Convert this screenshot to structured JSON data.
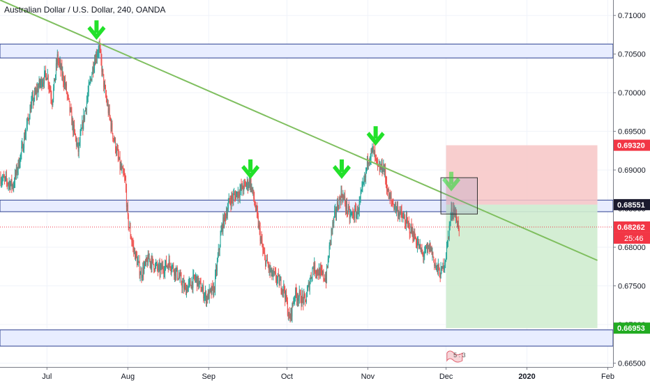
{
  "header": {
    "title": "Australian Dollar / U.S. Dollar, 240, OANDA"
  },
  "chart_data": {
    "type": "candlestick",
    "title": "Australian Dollar / U.S. Dollar, 240, OANDA",
    "ylim": [
      0.6645,
      0.712
    ],
    "y_ticks": [
      0.665,
      0.67,
      0.675,
      0.68,
      0.685,
      0.69,
      0.695,
      0.7,
      0.705,
      0.71
    ],
    "y_tick_labels": [
      "0.66500",
      "0.67000",
      "0.67500",
      "0.68000",
      "0.68500",
      "0.69000",
      "0.69500",
      "0.70000",
      "0.70500",
      "0.71000"
    ],
    "x_range": [
      "2019-06-13",
      "2020-02-03"
    ],
    "x_ticks": [
      {
        "label": "Jul",
        "date": "2019-07-01"
      },
      {
        "label": "Aug",
        "date": "2019-08-01"
      },
      {
        "label": "Sep",
        "date": "2019-09-01"
      },
      {
        "label": "Oct",
        "date": "2019-10-01"
      },
      {
        "label": "Nov",
        "date": "2019-11-01"
      },
      {
        "label": "Dec",
        "date": "2019-12-01"
      },
      {
        "label": "2020",
        "date": "2020-01-01"
      },
      {
        "label": "Feb",
        "date": "2020-02-01"
      }
    ],
    "price_path": [
      [
        "2019-06-13",
        0.689
      ],
      [
        "2019-06-18",
        0.688
      ],
      [
        "2019-06-21",
        0.692
      ],
      [
        "2019-06-25",
        0.6985
      ],
      [
        "2019-06-28",
        0.701
      ],
      [
        "2019-07-01",
        0.7025
      ],
      [
        "2019-07-03",
        0.699
      ],
      [
        "2019-07-05",
        0.7045
      ],
      [
        "2019-07-08",
        0.701
      ],
      [
        "2019-07-11",
        0.6955
      ],
      [
        "2019-07-13",
        0.6925
      ],
      [
        "2019-07-16",
        0.6985
      ],
      [
        "2019-07-19",
        0.704
      ],
      [
        "2019-07-21",
        0.706
      ],
      [
        "2019-07-23",
        0.7005
      ],
      [
        "2019-07-26",
        0.695
      ],
      [
        "2019-07-29",
        0.6905
      ],
      [
        "2019-07-31",
        0.6885
      ],
      [
        "2019-08-01",
        0.6835
      ],
      [
        "2019-08-03",
        0.68
      ],
      [
        "2019-08-06",
        0.6765
      ],
      [
        "2019-08-09",
        0.6785
      ],
      [
        "2019-08-13",
        0.677
      ],
      [
        "2019-08-17",
        0.678
      ],
      [
        "2019-08-20",
        0.6765
      ],
      [
        "2019-08-23",
        0.6745
      ],
      [
        "2019-08-27",
        0.676
      ],
      [
        "2019-08-31",
        0.6735
      ],
      [
        "2019-09-03",
        0.6745
      ],
      [
        "2019-09-06",
        0.6825
      ],
      [
        "2019-09-09",
        0.686
      ],
      [
        "2019-09-12",
        0.687
      ],
      [
        "2019-09-15",
        0.688
      ],
      [
        "2019-09-17",
        0.6885
      ],
      [
        "2019-09-19",
        0.685
      ],
      [
        "2019-09-22",
        0.679
      ],
      [
        "2019-09-25",
        0.6765
      ],
      [
        "2019-09-27",
        0.676
      ],
      [
        "2019-09-30",
        0.6745
      ],
      [
        "2019-10-02",
        0.6705
      ],
      [
        "2019-10-04",
        0.674
      ],
      [
        "2019-10-08",
        0.673
      ],
      [
        "2019-10-11",
        0.6775
      ],
      [
        "2019-10-14",
        0.6765
      ],
      [
        "2019-10-16",
        0.676
      ],
      [
        "2019-10-18",
        0.682
      ],
      [
        "2019-10-20",
        0.685
      ],
      [
        "2019-10-22",
        0.687
      ],
      [
        "2019-10-25",
        0.684
      ],
      [
        "2019-10-28",
        0.6845
      ],
      [
        "2019-10-31",
        0.689
      ],
      [
        "2019-11-01",
        0.6915
      ],
      [
        "2019-11-03",
        0.6925
      ],
      [
        "2019-11-05",
        0.69
      ],
      [
        "2019-11-07",
        0.6905
      ],
      [
        "2019-11-09",
        0.6865
      ],
      [
        "2019-11-12",
        0.685
      ],
      [
        "2019-11-15",
        0.6835
      ],
      [
        "2019-11-18",
        0.682
      ],
      [
        "2019-11-20",
        0.6805
      ],
      [
        "2019-11-22",
        0.679
      ],
      [
        "2019-11-25",
        0.68
      ],
      [
        "2019-11-27",
        0.6775
      ],
      [
        "2019-11-29",
        0.6765
      ],
      [
        "2019-12-01",
        0.679
      ],
      [
        "2019-12-02",
        0.682
      ],
      [
        "2019-12-03",
        0.6845
      ],
      [
        "2019-12-04",
        0.685
      ],
      [
        "2019-12-05",
        0.6835
      ],
      [
        "2019-12-06",
        0.6826
      ]
    ],
    "horizontal_zones": [
      {
        "from": 0.7045,
        "to": 0.7063,
        "color": "#e8edff"
      },
      {
        "from": 0.6846,
        "to": 0.6861,
        "color": "#e8edff"
      },
      {
        "from": 0.6672,
        "to": 0.6693,
        "color": "#e8edff"
      }
    ],
    "trendline": {
      "start": [
        "2019-06-13",
        0.712
      ],
      "end": [
        "2020-01-28",
        0.6783
      ],
      "color": "#7fbf5f"
    },
    "current_price_line": 0.68262,
    "position": {
      "entry": 0.68551,
      "stop": 0.6932,
      "target": 0.66953,
      "start": "2019-12-01",
      "end": "2020-01-28",
      "risk_color": "#f7c6c6",
      "reward_color": "#cfeccf"
    },
    "highlight_box": {
      "x0": "2019-11-29",
      "x1": "2019-12-13",
      "y0": 0.6843,
      "y1": 0.689
    },
    "arrows": [
      {
        "date": "2019-07-20",
        "price": 0.7063
      },
      {
        "date": "2019-09-17",
        "price": 0.6883
      },
      {
        "date": "2019-10-22",
        "price": 0.6883
      },
      {
        "date": "2019-11-04",
        "price": 0.6926
      },
      {
        "date": "2019-12-03",
        "price": 0.6867
      }
    ],
    "price_labels": [
      {
        "value": 0.6932,
        "text": "0.69320",
        "bg": "#f23645"
      },
      {
        "value": 0.68551,
        "text": "0.68551",
        "bg": "#1a1a2e"
      },
      {
        "value": 0.68262,
        "text": "0.68262",
        "bg": "#f23645"
      },
      {
        "value": 0.66953,
        "text": "0.66953",
        "bg": "#22ab22"
      }
    ],
    "countdown": "25:46",
    "event_marker": "5 : 3"
  }
}
